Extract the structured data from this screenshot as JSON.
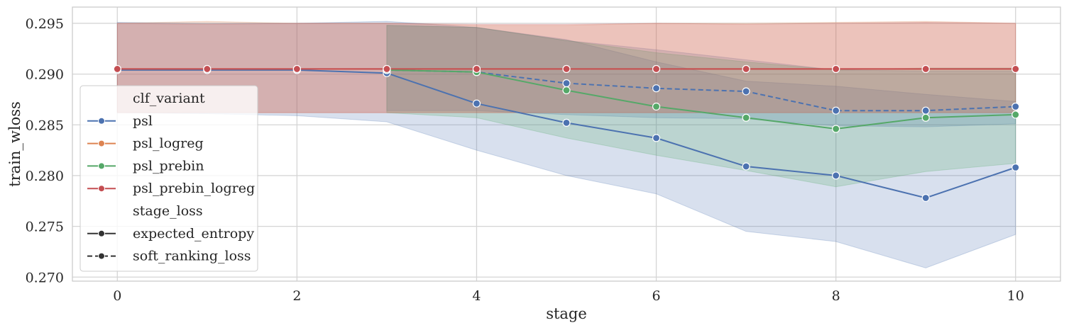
{
  "chart_data": {
    "type": "line",
    "title": "",
    "xlabel": "stage",
    "ylabel": "train_wloss",
    "xlim": [
      -0.5,
      10.5
    ],
    "ylim": [
      0.2696,
      0.2966
    ],
    "xticks": [
      0,
      2,
      4,
      6,
      8,
      10
    ],
    "yticks": [
      0.27,
      0.275,
      0.28,
      0.285,
      0.29,
      0.295
    ],
    "ytick_labels": [
      "0.270",
      "0.275",
      "0.280",
      "0.285",
      "0.290",
      "0.295"
    ],
    "grid": true,
    "legend": {
      "placement": "lower-left",
      "hue_title": "clf_variant",
      "style_title": "stage_loss",
      "style_entries": [
        {
          "label": "expected_entropy",
          "dash": "solid"
        },
        {
          "label": "soft_ranking_loss",
          "dash": "dashed"
        }
      ]
    },
    "series": [
      {
        "name": "psl",
        "color": "#4c72b0",
        "stage_loss": "expected_entropy",
        "x": [
          0,
          1,
          2,
          3,
          4,
          5,
          6,
          7,
          8,
          9,
          10
        ],
        "y": [
          0.2904,
          0.2904,
          0.2904,
          0.2901,
          0.2871,
          0.2852,
          0.2837,
          0.2809,
          0.28,
          0.2778,
          0.2808
        ],
        "lower": [
          0.2862,
          0.2861,
          0.2859,
          0.2853,
          0.2825,
          0.28,
          0.2782,
          0.2745,
          0.2735,
          0.2709,
          0.2742
        ],
        "upper": [
          0.2951,
          0.295,
          0.295,
          0.2952,
          0.2946,
          0.2934,
          0.2912,
          0.2893,
          0.2888,
          0.288,
          0.2873
        ]
      },
      {
        "name": "psl",
        "color": "#4c72b0",
        "stage_loss": "soft_ranking_loss",
        "x": [
          3,
          4,
          5,
          6,
          7,
          8,
          9,
          10
        ],
        "y": [
          0.2904,
          0.2902,
          0.2891,
          0.2886,
          0.2883,
          0.2864,
          0.2864,
          0.2868
        ],
        "lower": [
          0.2864,
          0.2864,
          0.286,
          0.2857,
          0.2856,
          0.2849,
          0.2848,
          0.2851
        ],
        "upper": [
          0.2948,
          0.2946,
          0.2933,
          0.2924,
          0.2914,
          0.2904,
          0.2903,
          0.2903
        ]
      },
      {
        "name": "psl_logreg",
        "color": "#dd8452",
        "stage_loss": "expected_entropy",
        "x": [
          0,
          1,
          2,
          3,
          4,
          5,
          6,
          7,
          8,
          9,
          10
        ],
        "y": [
          0.2905,
          0.2905,
          0.2905,
          0.2905,
          0.2905,
          0.2905,
          0.2905,
          0.2905,
          0.2905,
          0.2905,
          0.2905
        ],
        "lower": [
          0.2862,
          0.2862,
          0.2862,
          0.2862,
          0.2862,
          0.2862,
          0.2862,
          0.2862,
          0.2862,
          0.2862,
          0.2862
        ],
        "upper": [
          0.295,
          0.2952,
          0.295,
          0.295,
          0.2948,
          0.2948,
          0.295,
          0.295,
          0.2951,
          0.2952,
          0.295
        ]
      },
      {
        "name": "psl_prebin",
        "color": "#55a868",
        "stage_loss": "expected_entropy",
        "x": [
          3,
          4,
          5,
          6,
          7,
          8,
          9,
          10
        ],
        "y": [
          0.2904,
          0.2902,
          0.2884,
          0.2868,
          0.2857,
          0.2846,
          0.2857,
          0.286
        ],
        "lower": [
          0.2862,
          0.2857,
          0.2837,
          0.282,
          0.2805,
          0.2789,
          0.2804,
          0.2812
        ],
        "upper": [
          0.2948,
          0.2946,
          0.2933,
          0.2921,
          0.2912,
          0.2904,
          0.2906,
          0.2906
        ]
      },
      {
        "name": "psl_prebin_logreg",
        "color": "#c44e52",
        "stage_loss": "expected_entropy",
        "x": [
          0,
          1,
          2,
          3,
          4,
          5,
          6,
          7,
          8,
          9,
          10
        ],
        "y": [
          0.2905,
          0.2905,
          0.2905,
          0.2905,
          0.2905,
          0.2905,
          0.2905,
          0.2905,
          0.2905,
          0.2905,
          0.2905
        ],
        "lower": [
          0.2862,
          0.2862,
          0.2862,
          0.2862,
          0.2862,
          0.2862,
          0.2862,
          0.2862,
          0.2862,
          0.2862,
          0.2862
        ],
        "upper": [
          0.295,
          0.2949,
          0.295,
          0.295,
          0.2949,
          0.2949,
          0.295,
          0.2949,
          0.295,
          0.2951,
          0.295
        ]
      }
    ]
  }
}
